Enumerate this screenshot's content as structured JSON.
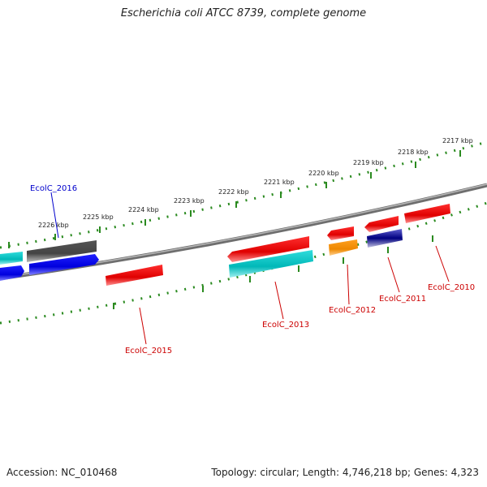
{
  "title": "Escherichia coli ATCC 8739, complete genome",
  "footer": {
    "accession": "Accession: NC_010468",
    "summary": "Topology: circular; Length: 4,746,218 bp; Genes: 4,323"
  },
  "colors": {
    "backbone": "#808080",
    "tick": "#2a8a1f",
    "label_default": "#cc0000",
    "label_highlight": "#0000cc"
  },
  "ticks": [
    "2226 kbp",
    "2225 kbp",
    "2224 kbp",
    "2223 kbp",
    "2222 kbp",
    "2221 kbp",
    "2220 kbp",
    "2219 kbp",
    "2218 kbp",
    "2217 kbp"
  ],
  "genes": [
    {
      "label": "EcolC_2016",
      "color": "#0000cc"
    },
    {
      "label": "EcolC_2015",
      "color": "#cc0000"
    },
    {
      "label": "EcolC_2013",
      "color": "#cc0000"
    },
    {
      "label": "EcolC_2012",
      "color": "#cc0000"
    },
    {
      "label": "EcolC_2011",
      "color": "#cc0000"
    },
    {
      "label": "EcolC_2010",
      "color": "#cc0000"
    }
  ]
}
